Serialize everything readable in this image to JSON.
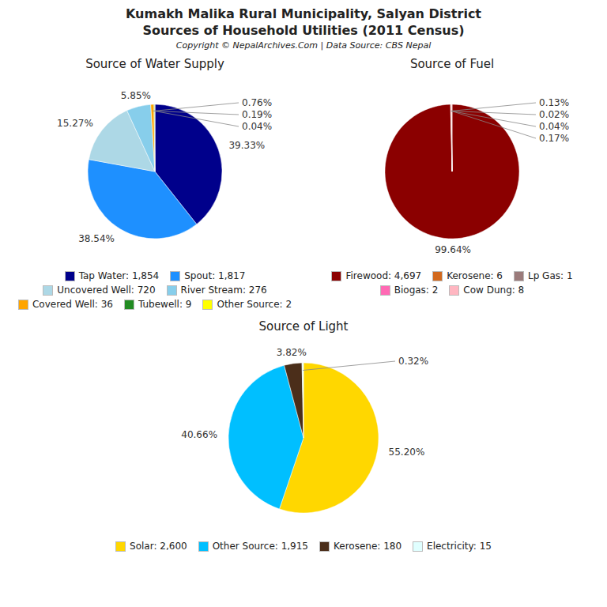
{
  "title": "Kumakh Malika Rural Municipality, Salyan District",
  "subtitle": "Sources of Household Utilities (2011 Census)",
  "annotations": [
    "Copyright © NepalArchives.Com | Data Source: CBS Nepal"
  ],
  "chart_data": [
    {
      "type": "pie",
      "title": "Source of Water Supply",
      "categories": [
        "Tap Water: 1,854",
        "Spout: 1,817",
        "Uncovered Well: 720",
        "River Stream: 276",
        "Covered Well: 36",
        "Tubewell: 9",
        "Other Source: 2"
      ],
      "values": [
        39.33,
        38.54,
        15.27,
        5.85,
        0.76,
        0.19,
        0.04
      ],
      "value_labels": [
        "39.33%",
        "38.54%",
        "15.27%",
        "5.85%",
        "0.76%",
        "0.19%",
        "0.04%"
      ],
      "colors": [
        "#00008B",
        "#1E90FF",
        "#ADD8E6",
        "#87CEEB",
        "#FFA500",
        "#228B22",
        "#FFFF00"
      ],
      "data_labels": true,
      "legend": "bottom"
    },
    {
      "type": "pie",
      "title": "Source of Fuel",
      "categories": [
        "Firewood: 4,697",
        "Kerosene: 6",
        "Lp Gas: 1",
        "Biogas: 2",
        "Cow Dung: 8"
      ],
      "values": [
        99.64,
        0.13,
        0.02,
        0.04,
        0.17
      ],
      "value_labels": [
        "99.64%",
        "0.13%",
        "0.02%",
        "0.04%",
        "0.17%"
      ],
      "colors": [
        "#8B0000",
        "#D2691E",
        "#9B7B7B",
        "#FF69B4",
        "#FFB6C1"
      ],
      "data_labels": true,
      "legend": "bottom"
    },
    {
      "type": "pie",
      "title": "Source of Light",
      "categories": [
        "Solar: 2,600",
        "Other Source: 1,915",
        "Kerosene: 180",
        "Electricity: 15"
      ],
      "values": [
        55.2,
        40.66,
        3.82,
        0.32
      ],
      "value_labels": [
        "55.20%",
        "40.66%",
        "3.82%",
        "0.32%"
      ],
      "colors": [
        "#FFD700",
        "#00BFFF",
        "#4B2E1A",
        "#E0FFFF"
      ],
      "data_labels": true,
      "legend": "bottom"
    }
  ]
}
